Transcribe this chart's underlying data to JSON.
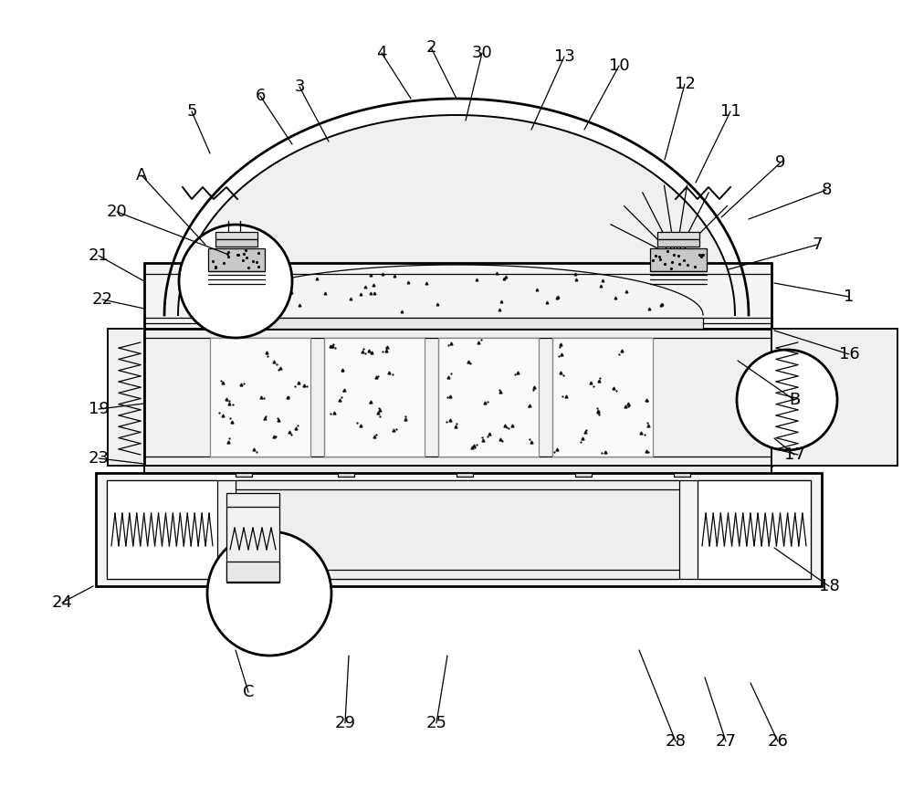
{
  "bg_color": "#ffffff",
  "lc": "#000000",
  "fig_width": 10.0,
  "fig_height": 8.74,
  "label_fs": 13,
  "label_fs_sm": 11,
  "labels": [
    [
      "1",
      930,
      325
    ],
    [
      "2",
      472,
      52
    ],
    [
      "3",
      328,
      95
    ],
    [
      "4",
      418,
      58
    ],
    [
      "5",
      210,
      122
    ],
    [
      "6",
      285,
      105
    ],
    [
      "7",
      895,
      268
    ],
    [
      "8",
      905,
      208
    ],
    [
      "9",
      855,
      178
    ],
    [
      "10",
      678,
      72
    ],
    [
      "11",
      800,
      122
    ],
    [
      "12",
      750,
      92
    ],
    [
      "13",
      618,
      62
    ],
    [
      "16",
      930,
      388
    ],
    [
      "17",
      870,
      498
    ],
    [
      "18",
      908,
      642
    ],
    [
      "19",
      108,
      448
    ],
    [
      "20",
      128,
      232
    ],
    [
      "21",
      108,
      280
    ],
    [
      "22",
      112,
      328
    ],
    [
      "23",
      108,
      502
    ],
    [
      "24",
      68,
      660
    ],
    [
      "25",
      478,
      792
    ],
    [
      "26",
      852,
      812
    ],
    [
      "27",
      795,
      812
    ],
    [
      "28",
      740,
      812
    ],
    [
      "29",
      378,
      792
    ],
    [
      "30",
      528,
      58
    ],
    [
      "A",
      155,
      192
    ],
    [
      "B",
      870,
      438
    ],
    [
      "C",
      272,
      758
    ]
  ],
  "leader_lines": [
    [
      "1",
      930,
      325,
      848,
      310
    ],
    [
      "2",
      472,
      52,
      500,
      108
    ],
    [
      "3",
      328,
      95,
      360,
      155
    ],
    [
      "4",
      418,
      58,
      450,
      108
    ],
    [
      "5",
      210,
      122,
      230,
      168
    ],
    [
      "6",
      285,
      105,
      320,
      158
    ],
    [
      "7",
      895,
      268,
      798,
      295
    ],
    [
      "8",
      905,
      208,
      820,
      240
    ],
    [
      "9",
      855,
      178,
      790,
      238
    ],
    [
      "10",
      678,
      72,
      640,
      142
    ],
    [
      "11",
      800,
      122,
      762,
      200
    ],
    [
      "12",
      750,
      92,
      728,
      175
    ],
    [
      "13",
      618,
      62,
      582,
      142
    ],
    [
      "16",
      930,
      388,
      848,
      362
    ],
    [
      "17",
      870,
      498,
      848,
      480
    ],
    [
      "18",
      908,
      642,
      848,
      600
    ],
    [
      "19",
      108,
      448,
      158,
      442
    ],
    [
      "20",
      128,
      232,
      248,
      278
    ],
    [
      "21",
      108,
      280,
      158,
      308
    ],
    [
      "22",
      112,
      328,
      158,
      338
    ],
    [
      "23",
      108,
      502,
      158,
      508
    ],
    [
      "24",
      68,
      660,
      102,
      642
    ],
    [
      "25",
      478,
      792,
      490,
      718
    ],
    [
      "26",
      852,
      812,
      822,
      748
    ],
    [
      "27",
      795,
      812,
      772,
      742
    ],
    [
      "28",
      740,
      812,
      700,
      712
    ],
    [
      "29",
      378,
      792,
      382,
      718
    ],
    [
      "30",
      528,
      58,
      510,
      132
    ],
    [
      "A",
      155,
      192,
      225,
      268
    ],
    [
      "B",
      870,
      438,
      808,
      395
    ],
    [
      "C",
      272,
      758,
      258,
      712
    ]
  ]
}
